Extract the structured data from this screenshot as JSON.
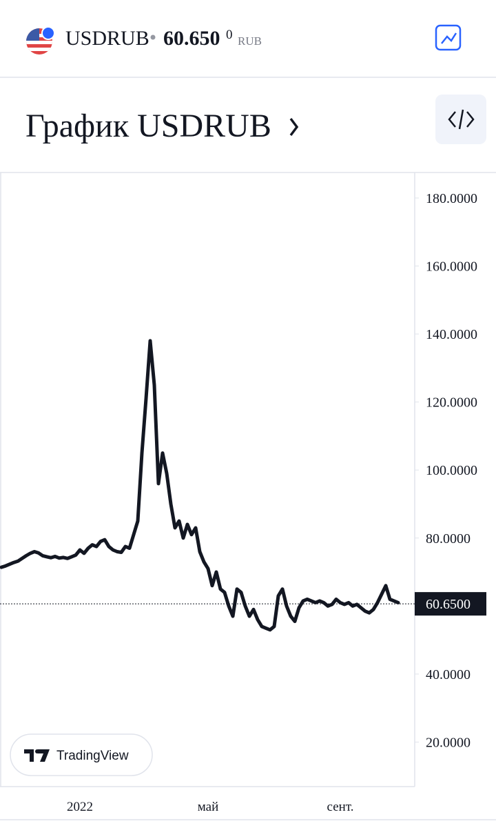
{
  "header": {
    "symbol": "USDRUB",
    "price": "60.650",
    "price_last_digit": "0",
    "currency": "RUB"
  },
  "title": "График USDRUB",
  "badge": "TradingView",
  "chart_data": {
    "type": "line",
    "categories": [
      null,
      null,
      null,
      null,
      null,
      null,
      null,
      null,
      null,
      null,
      null,
      null,
      null,
      null,
      null,
      null,
      null,
      null,
      null,
      "2022",
      null,
      null,
      null,
      null,
      null,
      null,
      null,
      null,
      null,
      null,
      null,
      null,
      null,
      null,
      null,
      null,
      null,
      null,
      null,
      null,
      null,
      null,
      null,
      null,
      null,
      null,
      null,
      null,
      null,
      null,
      "май",
      null,
      null,
      null,
      null,
      null,
      null,
      null,
      null,
      null,
      null,
      null,
      null,
      null,
      null,
      null,
      null,
      null,
      null,
      null,
      null,
      null,
      null,
      null,
      null,
      null,
      null,
      null,
      null,
      null,
      null,
      null,
      "сент.",
      null,
      null,
      null,
      null,
      null,
      null,
      null,
      null,
      null,
      null,
      null,
      null,
      null,
      null
    ],
    "values": [
      71.4,
      71.8,
      72.3,
      72.8,
      73.2,
      74,
      74.8,
      75.5,
      76,
      75.6,
      74.8,
      74.5,
      74.2,
      74.6,
      74.1,
      74.3,
      74,
      74.5,
      75,
      76.5,
      75.5,
      77,
      78,
      77.5,
      79,
      79.5,
      77.5,
      76.5,
      76,
      75.8,
      77.5,
      77,
      81,
      85,
      105,
      121,
      138,
      125,
      96,
      105,
      99,
      90,
      83,
      85,
      80,
      84,
      81,
      83,
      76,
      73,
      71,
      66,
      70,
      65,
      64,
      60,
      57,
      65,
      64,
      60,
      57,
      59,
      56,
      54,
      53.5,
      53,
      54,
      63,
      65,
      60,
      57,
      55.5,
      59.5,
      61.5,
      62,
      61.5,
      61,
      61.5,
      61,
      60,
      60.5,
      62,
      61,
      60.5,
      61,
      60,
      60.5,
      59.5,
      58.5,
      58,
      59,
      61,
      63.5,
      66,
      62,
      61.5,
      61
    ],
    "color": "#131722",
    "ylim": [
      6.9,
      187.5
    ],
    "yticks": [
      {
        "value": 20,
        "label": "20.0000"
      },
      {
        "value": 40,
        "label": "40.0000"
      },
      {
        "value": 60,
        "label": "60.0000"
      },
      {
        "value": 80,
        "label": "80.0000"
      },
      {
        "value": 100,
        "label": "100.0000"
      },
      {
        "value": 120,
        "label": "120.0000"
      },
      {
        "value": 140,
        "label": "140.0000"
      },
      {
        "value": 160,
        "label": "160.0000"
      },
      {
        "value": 180,
        "label": "180.0000"
      }
    ],
    "price_line": {
      "value": 60.65,
      "label": "60.6500"
    }
  }
}
